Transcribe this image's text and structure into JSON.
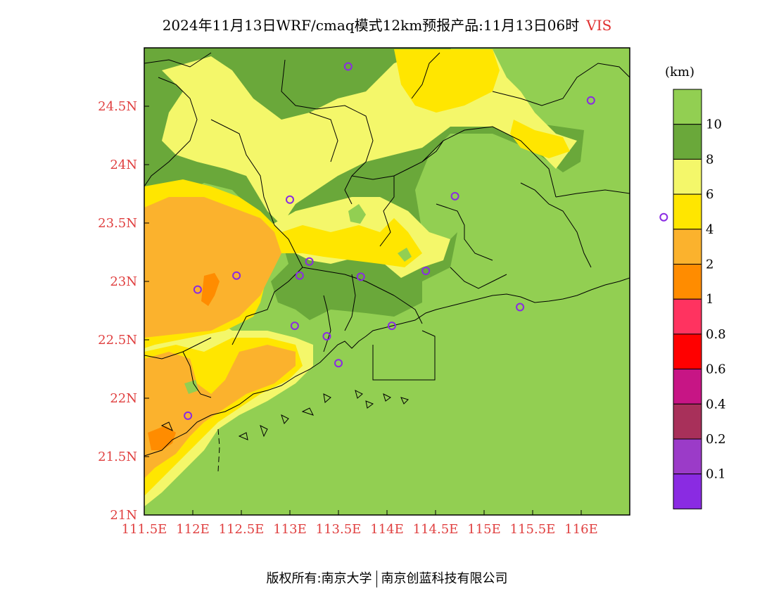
{
  "title": {
    "main": "2024年11月13日WRF/cmaq模式12km预报产品:11月13日06时",
    "variable": "VIS"
  },
  "footer": {
    "left": "版权所有:南京大学",
    "right": "南京创蓝科技有限公司"
  },
  "map": {
    "lon_range": [
      111.5,
      116.5
    ],
    "lat_range": [
      21.0,
      25.0
    ],
    "lon_ticks": [
      "111.5E",
      "112E",
      "112.5E",
      "113E",
      "113.5E",
      "114E",
      "114.5E",
      "115E",
      "115.5E",
      "116E"
    ],
    "lat_ticks": [
      "21N",
      "21.5N",
      "22N",
      "22.5N",
      "23N",
      "23.5N",
      "24N",
      "24.5N"
    ],
    "tick_color": "#e04040",
    "stations": [
      {
        "lon": 113.6,
        "lat": 24.84
      },
      {
        "lon": 113.0,
        "lat": 23.7
      },
      {
        "lon": 113.2,
        "lat": 23.17
      },
      {
        "lon": 113.1,
        "lat": 23.05
      },
      {
        "lon": 112.45,
        "lat": 23.05
      },
      {
        "lon": 112.05,
        "lat": 22.93
      },
      {
        "lon": 113.73,
        "lat": 23.04
      },
      {
        "lon": 114.4,
        "lat": 23.09
      },
      {
        "lon": 114.7,
        "lat": 23.73
      },
      {
        "lon": 116.1,
        "lat": 24.55
      },
      {
        "lon": 116.85,
        "lat": 23.55
      },
      {
        "lon": 113.05,
        "lat": 22.62
      },
      {
        "lon": 113.38,
        "lat": 22.53
      },
      {
        "lon": 113.5,
        "lat": 22.3
      },
      {
        "lon": 114.05,
        "lat": 22.62
      },
      {
        "lon": 115.37,
        "lat": 22.78
      },
      {
        "lon": 111.95,
        "lat": 21.85
      }
    ]
  },
  "legend": {
    "unit": "(km)",
    "labels": [
      "10",
      "8",
      "6",
      "4",
      "2",
      "1",
      "0.8",
      "0.6",
      "0.4",
      "0.2",
      "0.1"
    ],
    "colors": [
      "#92cf52",
      "#6aa83a",
      "#f4f76a",
      "#ffe600",
      "#fbb22d",
      "#ff8c00",
      "#ff3360",
      "#ff0000",
      "#c71585",
      "#a8305a",
      "#9b3bc8",
      "#8a2be2"
    ]
  },
  "colors": {
    "c10": "#92cf52",
    "c8": "#6aa83a",
    "c6": "#f4f76a",
    "c4": "#ffe600",
    "c2": "#fbb22d",
    "c1": "#ff8c00",
    "station": "#8a2be2"
  }
}
